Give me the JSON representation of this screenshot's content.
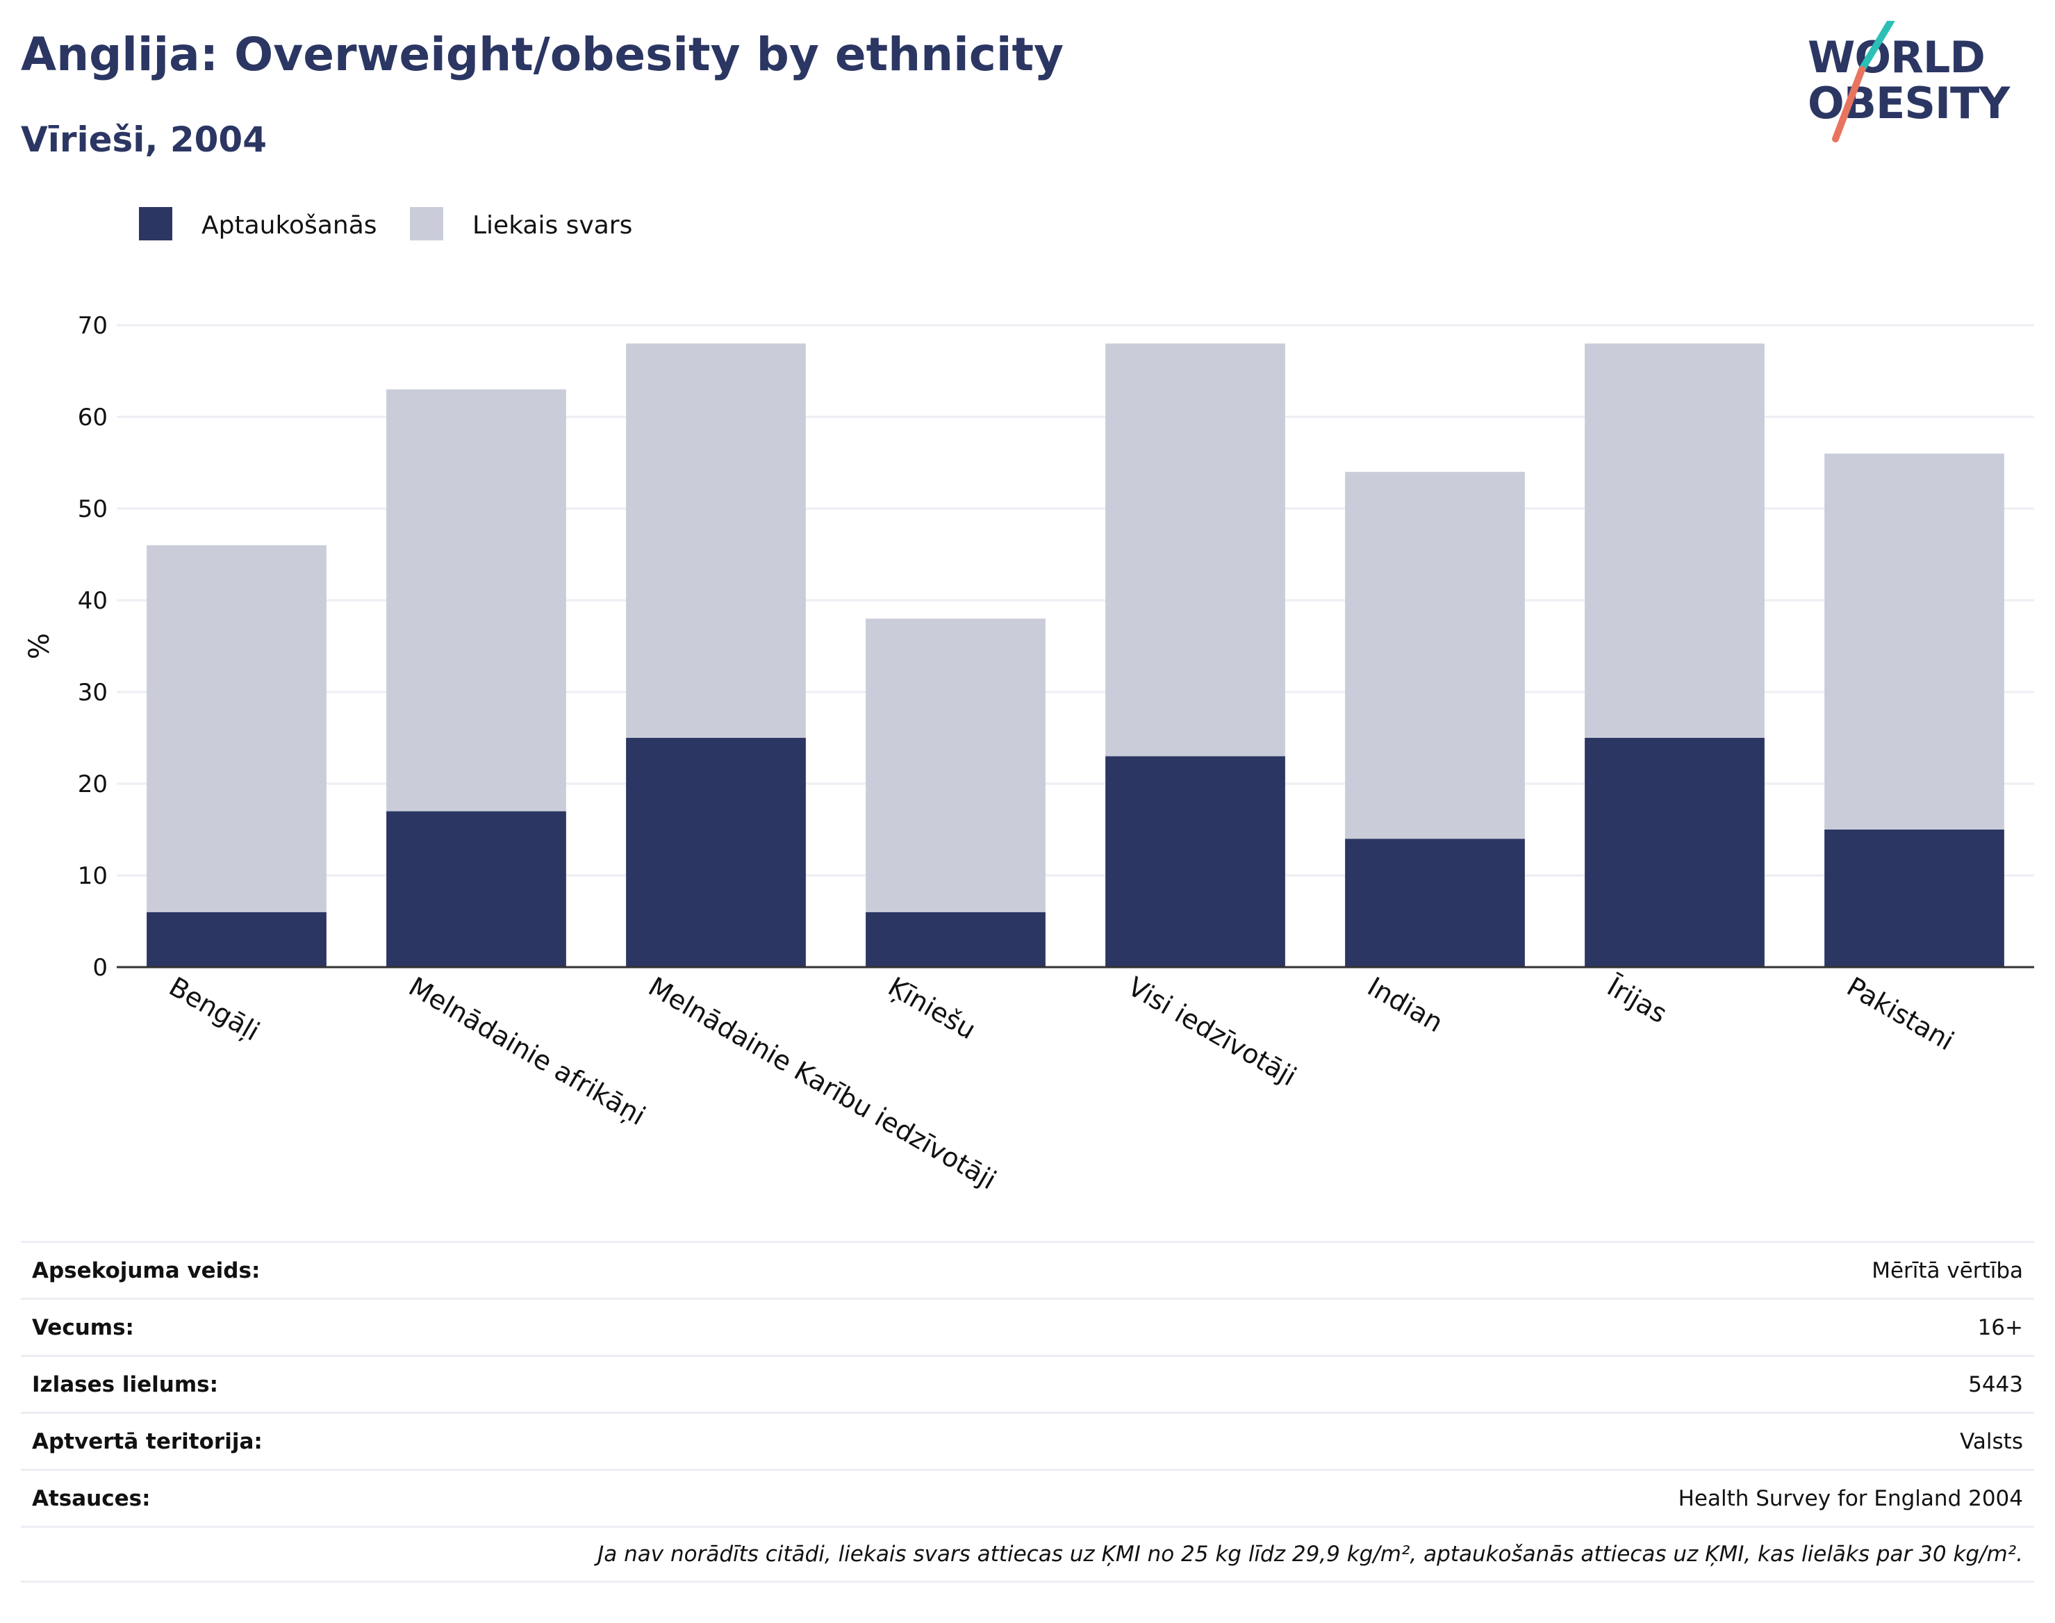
{
  "header": {
    "title": "Anglija: Overweight/obesity by ethnicity",
    "subtitle": "Vīrieši, 2004"
  },
  "logo": {
    "line1": "WORLD",
    "line2": "OBESITY",
    "slash_colors": [
      "#2bbfb5",
      "#e8745f"
    ]
  },
  "colors": {
    "obesity": "#2b3663",
    "overweight": "#cacdd9",
    "text": "#2b3663",
    "grid": "#eceef4"
  },
  "chart_data": {
    "type": "bar",
    "stacked": true,
    "categories": [
      "Bengāļi",
      "Melnādainie afrikāņi",
      "Melnādainie Karību iedzīvotāji",
      "Ķīniešu",
      "Visi iedzīvotāji",
      "Indian",
      "Īrijas",
      "Pakistani"
    ],
    "series": [
      {
        "name": "Aptaukošanās",
        "color": "#2b3663",
        "values": [
          6,
          17,
          25,
          6,
          23,
          14,
          25,
          15
        ]
      },
      {
        "name": "Liekais svars",
        "color": "#cacdd9",
        "values": [
          40,
          46,
          43,
          32,
          45,
          40,
          43,
          41
        ]
      }
    ],
    "ylabel": "%",
    "xlabel": "",
    "ylim": [
      0,
      70
    ],
    "yticks": [
      0,
      10,
      20,
      30,
      40,
      50,
      60,
      70
    ],
    "grid": true,
    "legend": "top-left"
  },
  "meta": {
    "rows": [
      {
        "label": "Apsekojuma veids:",
        "value": "Mērītā vērtība"
      },
      {
        "label": "Vecums:",
        "value": "16+"
      },
      {
        "label": "Izlases lielums:",
        "value": "5443"
      },
      {
        "label": "Aptvertā teritorija:",
        "value": "Valsts"
      },
      {
        "label": "Atsauces:",
        "value": "Health Survey for England 2004"
      }
    ],
    "note": "Ja nav norādīts citādi, liekais svars attiecas uz ĶMI no 25 kg līdz 29,9 kg/m², aptaukošanās attiecas uz ĶMI, kas lielāks par 30 kg/m²."
  }
}
